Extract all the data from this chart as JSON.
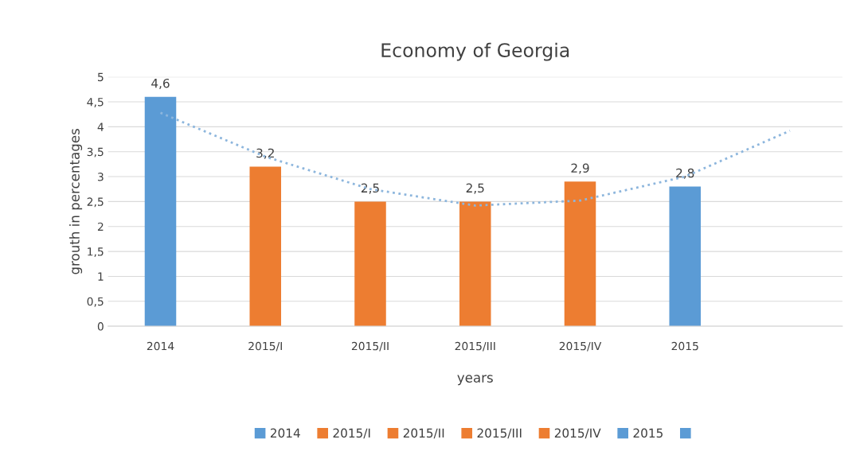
{
  "chart_data": {
    "type": "bar",
    "title": "Economy of Georgia",
    "xlabel": "years",
    "ylabel": "grouth in percentages",
    "categories": [
      "2014",
      "2015/I",
      "2015/II",
      "2015/III",
      "2015/IV",
      "2015",
      null
    ],
    "series": [
      {
        "name": "2014",
        "color": "#5b9bd5",
        "values": [
          4.6,
          null,
          null,
          null,
          null,
          null,
          null
        ],
        "value_labels": [
          "4,6",
          null,
          null,
          null,
          null,
          null,
          null
        ]
      },
      {
        "name": "2015/I",
        "color": "#ed7d31",
        "values": [
          null,
          3.2,
          null,
          null,
          null,
          null,
          null
        ],
        "value_labels": [
          null,
          "3,2",
          null,
          null,
          null,
          null,
          null
        ]
      },
      {
        "name": "2015/II",
        "color": "#ed7d31",
        "values": [
          null,
          null,
          2.5,
          null,
          null,
          null,
          null
        ],
        "value_labels": [
          null,
          null,
          "2,5",
          null,
          null,
          null,
          null
        ]
      },
      {
        "name": "2015/III",
        "color": "#ed7d31",
        "values": [
          null,
          null,
          null,
          2.5,
          null,
          null,
          null
        ],
        "value_labels": [
          null,
          null,
          null,
          "2,5",
          null,
          null,
          null
        ]
      },
      {
        "name": "2015/IV",
        "color": "#ed7d31",
        "values": [
          null,
          null,
          null,
          null,
          2.9,
          null,
          null
        ],
        "value_labels": [
          null,
          null,
          null,
          null,
          "2,9",
          null,
          null
        ]
      },
      {
        "name": "2015",
        "color": "#5b9bd5",
        "values": [
          null,
          null,
          null,
          null,
          null,
          2.8,
          null
        ],
        "value_labels": [
          null,
          null,
          null,
          null,
          null,
          "2,8",
          null
        ]
      },
      {
        "color": "#5b9bd5",
        "values": [
          null,
          null,
          null,
          null,
          null,
          null,
          null
        ]
      },
      {
        "type": "line",
        "color": "#8db6dd",
        "line_style": "dotted",
        "values": [
          4.28,
          3.4,
          2.75,
          2.42,
          2.52,
          3.0,
          3.92
        ]
      }
    ],
    "ylim": [
      0,
      5
    ],
    "yticks": [
      0,
      {
        "value": 0.5,
        "label": "0,5"
      },
      1,
      {
        "value": 1.5,
        "label": "1,5"
      },
      2,
      {
        "value": 2.5,
        "label": "2,5"
      },
      3,
      {
        "value": 3.5,
        "label": "3,5"
      },
      4,
      {
        "value": 4.5,
        "label": "4,5"
      },
      5
    ],
    "grid": "y",
    "legend": "bottom"
  }
}
